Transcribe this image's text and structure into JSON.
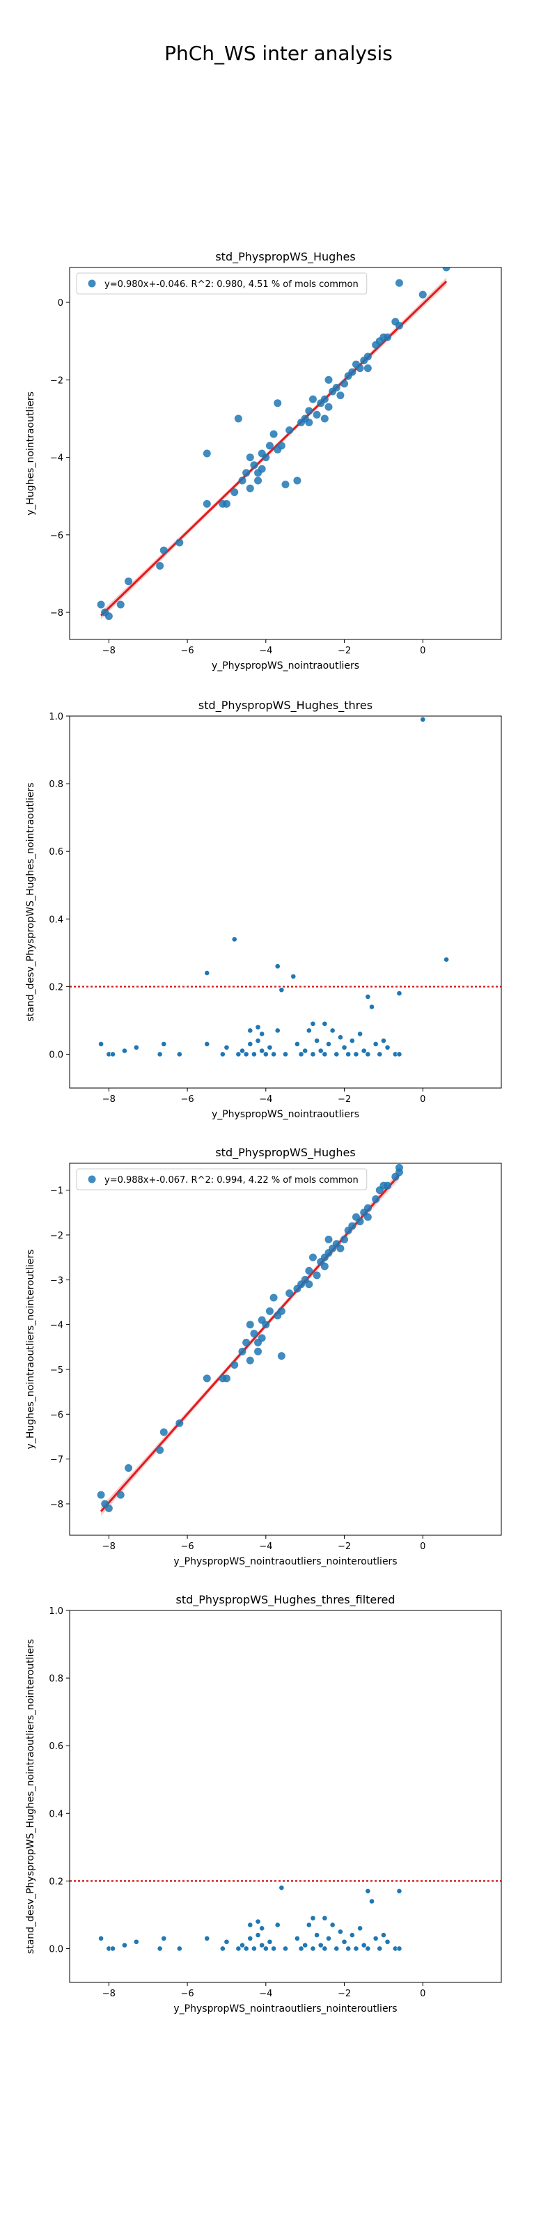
{
  "figure_title": "PhCh_WS inter analysis",
  "colors": {
    "point": "#1f77b4",
    "fit_line": "#e31a1c",
    "fit_band": "#f4a3a3",
    "threshold": "#d62728"
  },
  "chart_data": [
    {
      "type": "scatter",
      "title": "std_PhyspropWS_Hughes",
      "xlabel": "y_PhyspropWS_nointraoutliers",
      "ylabel": "y_Hughes_nointraoutliers",
      "xlim": [
        -9,
        2
      ],
      "ylim": [
        -8.7,
        0.9
      ],
      "xticks": [
        -8,
        -6,
        -4,
        -2,
        0
      ],
      "yticks": [
        -8,
        -6,
        -4,
        -2,
        0
      ],
      "legend": {
        "text": "y=0.980x+-0.046. R^2: 0.980, 4.51 % of mols common",
        "position": "top-left"
      },
      "grid": false,
      "fit": {
        "slope": 0.98,
        "intercept": -0.046,
        "x_range": [
          -8.2,
          0.6
        ],
        "band": true
      },
      "points": [
        [
          -8.2,
          -7.8
        ],
        [
          -8.1,
          -8.0
        ],
        [
          -8.0,
          -8.1
        ],
        [
          -7.7,
          -7.8
        ],
        [
          -7.5,
          -7.2
        ],
        [
          -6.7,
          -6.8
        ],
        [
          -6.6,
          -6.4
        ],
        [
          -6.2,
          -6.2
        ],
        [
          -5.5,
          -5.2
        ],
        [
          -5.5,
          -3.9
        ],
        [
          -5.1,
          -5.2
        ],
        [
          -5.0,
          -5.2
        ],
        [
          -4.8,
          -4.9
        ],
        [
          -4.7,
          -3.0
        ],
        [
          -4.6,
          -4.6
        ],
        [
          -4.5,
          -4.4
        ],
        [
          -4.4,
          -4.0
        ],
        [
          -4.4,
          -4.8
        ],
        [
          -4.3,
          -4.2
        ],
        [
          -4.2,
          -4.4
        ],
        [
          -4.2,
          -4.6
        ],
        [
          -4.1,
          -3.9
        ],
        [
          -4.1,
          -4.3
        ],
        [
          -4.0,
          -4.0
        ],
        [
          -3.9,
          -3.7
        ],
        [
          -3.8,
          -3.4
        ],
        [
          -3.7,
          -3.8
        ],
        [
          -3.7,
          -2.6
        ],
        [
          -3.6,
          -3.7
        ],
        [
          -3.5,
          -4.7
        ],
        [
          -3.4,
          -3.3
        ],
        [
          -3.2,
          -4.6
        ],
        [
          -3.1,
          -3.1
        ],
        [
          -3.0,
          -3.0
        ],
        [
          -2.9,
          -2.8
        ],
        [
          -2.9,
          -3.1
        ],
        [
          -2.8,
          -2.5
        ],
        [
          -2.7,
          -2.9
        ],
        [
          -2.6,
          -2.6
        ],
        [
          -2.5,
          -3.0
        ],
        [
          -2.5,
          -2.5
        ],
        [
          -2.4,
          -2.7
        ],
        [
          -2.4,
          -2.0
        ],
        [
          -2.3,
          -2.3
        ],
        [
          -2.2,
          -2.2
        ],
        [
          -2.1,
          -2.4
        ],
        [
          -2.0,
          -2.1
        ],
        [
          -1.9,
          -1.9
        ],
        [
          -1.8,
          -1.8
        ],
        [
          -1.7,
          -1.6
        ],
        [
          -1.6,
          -1.7
        ],
        [
          -1.5,
          -1.5
        ],
        [
          -1.4,
          -1.4
        ],
        [
          -1.4,
          -1.7
        ],
        [
          -1.2,
          -1.1
        ],
        [
          -1.1,
          -1.0
        ],
        [
          -1.0,
          -0.9
        ],
        [
          -0.9,
          -0.9
        ],
        [
          -0.7,
          -0.5
        ],
        [
          -0.6,
          -0.6
        ],
        [
          -0.6,
          0.5
        ],
        [
          0.0,
          0.2
        ],
        [
          0.6,
          0.9
        ]
      ]
    },
    {
      "type": "scatter",
      "title": "std_PhyspropWS_Hughes_thres",
      "xlabel": "y_PhyspropWS_nointraoutliers",
      "ylabel": "stand_desv_PhyspropWS_Hughes_nointraoutliers",
      "xlim": [
        -9,
        2
      ],
      "ylim": [
        -0.1,
        1.0
      ],
      "xticks": [
        -8,
        -6,
        -4,
        -2,
        0
      ],
      "yticks": [
        0.0,
        0.2,
        0.4,
        0.6,
        0.8,
        1.0
      ],
      "threshold": 0.2,
      "grid": false,
      "points": [
        [
          -8.2,
          0.03
        ],
        [
          -8.0,
          0.0
        ],
        [
          -7.9,
          0.0
        ],
        [
          -7.6,
          0.01
        ],
        [
          -7.3,
          0.02
        ],
        [
          -6.7,
          0.0
        ],
        [
          -6.6,
          0.03
        ],
        [
          -6.2,
          0.0
        ],
        [
          -5.5,
          0.24
        ],
        [
          -5.5,
          0.03
        ],
        [
          -5.1,
          0.0
        ],
        [
          -5.0,
          0.02
        ],
        [
          -4.8,
          0.34
        ],
        [
          -4.7,
          0.0
        ],
        [
          -4.6,
          0.01
        ],
        [
          -4.5,
          0.0
        ],
        [
          -4.4,
          0.07
        ],
        [
          -4.4,
          0.03
        ],
        [
          -4.3,
          0.0
        ],
        [
          -4.2,
          0.04
        ],
        [
          -4.2,
          0.08
        ],
        [
          -4.1,
          0.01
        ],
        [
          -4.1,
          0.06
        ],
        [
          -4.0,
          0.0
        ],
        [
          -3.9,
          0.02
        ],
        [
          -3.8,
          0.0
        ],
        [
          -3.7,
          0.26
        ],
        [
          -3.7,
          0.07
        ],
        [
          -3.6,
          0.19
        ],
        [
          -3.5,
          0.0
        ],
        [
          -3.3,
          0.23
        ],
        [
          -3.2,
          0.03
        ],
        [
          -3.1,
          0.0
        ],
        [
          -3.0,
          0.01
        ],
        [
          -2.9,
          0.07
        ],
        [
          -2.8,
          0.09
        ],
        [
          -2.8,
          0.0
        ],
        [
          -2.7,
          0.04
        ],
        [
          -2.6,
          0.01
        ],
        [
          -2.5,
          0.0
        ],
        [
          -2.5,
          0.09
        ],
        [
          -2.4,
          0.03
        ],
        [
          -2.3,
          0.07
        ],
        [
          -2.2,
          0.0
        ],
        [
          -2.1,
          0.05
        ],
        [
          -2.0,
          0.02
        ],
        [
          -1.9,
          0.0
        ],
        [
          -1.8,
          0.04
        ],
        [
          -1.7,
          0.0
        ],
        [
          -1.6,
          0.06
        ],
        [
          -1.5,
          0.01
        ],
        [
          -1.4,
          0.17
        ],
        [
          -1.4,
          0.0
        ],
        [
          -1.3,
          0.14
        ],
        [
          -1.2,
          0.03
        ],
        [
          -1.1,
          0.0
        ],
        [
          -1.0,
          0.04
        ],
        [
          -0.9,
          0.02
        ],
        [
          -0.7,
          0.0
        ],
        [
          -0.6,
          0.18
        ],
        [
          -0.6,
          0.0
        ],
        [
          0.0,
          0.99
        ],
        [
          0.6,
          0.28
        ]
      ]
    },
    {
      "type": "scatter",
      "title": "std_PhyspropWS_Hughes",
      "xlabel": "y_PhyspropWS_nointraoutliers_nointeroutliers",
      "ylabel": "y_Hughes_nointraoutliers_nointeroutliers",
      "xlim": [
        -9,
        2
      ],
      "ylim": [
        -8.7,
        -0.4
      ],
      "xticks": [
        -8,
        -6,
        -4,
        -2,
        0
      ],
      "yticks": [
        -8,
        -7,
        -6,
        -5,
        -4,
        -3,
        -2,
        -1
      ],
      "legend": {
        "text": "y=0.988x+-0.067. R^2: 0.994, 4.22 % of mols common",
        "position": "top-left"
      },
      "grid": false,
      "fit": {
        "slope": 0.988,
        "intercept": -0.067,
        "x_range": [
          -8.2,
          -0.6
        ],
        "band": true
      },
      "points": [
        [
          -8.2,
          -7.8
        ],
        [
          -8.1,
          -8.0
        ],
        [
          -8.0,
          -8.1
        ],
        [
          -7.7,
          -7.8
        ],
        [
          -7.5,
          -7.2
        ],
        [
          -6.7,
          -6.8
        ],
        [
          -6.6,
          -6.4
        ],
        [
          -6.2,
          -6.2
        ],
        [
          -5.5,
          -5.2
        ],
        [
          -5.1,
          -5.2
        ],
        [
          -5.0,
          -5.2
        ],
        [
          -4.8,
          -4.9
        ],
        [
          -4.6,
          -4.6
        ],
        [
          -4.5,
          -4.4
        ],
        [
          -4.4,
          -4.0
        ],
        [
          -4.4,
          -4.8
        ],
        [
          -4.3,
          -4.2
        ],
        [
          -4.2,
          -4.4
        ],
        [
          -4.2,
          -4.6
        ],
        [
          -4.1,
          -3.9
        ],
        [
          -4.1,
          -4.3
        ],
        [
          -4.0,
          -4.0
        ],
        [
          -3.9,
          -3.7
        ],
        [
          -3.8,
          -3.4
        ],
        [
          -3.7,
          -3.8
        ],
        [
          -3.6,
          -3.7
        ],
        [
          -3.6,
          -4.7
        ],
        [
          -3.4,
          -3.3
        ],
        [
          -3.2,
          -3.2
        ],
        [
          -3.1,
          -3.1
        ],
        [
          -3.0,
          -3.0
        ],
        [
          -2.9,
          -2.8
        ],
        [
          -2.9,
          -3.1
        ],
        [
          -2.8,
          -2.5
        ],
        [
          -2.7,
          -2.9
        ],
        [
          -2.6,
          -2.6
        ],
        [
          -2.5,
          -2.7
        ],
        [
          -2.5,
          -2.5
        ],
        [
          -2.4,
          -2.4
        ],
        [
          -2.4,
          -2.1
        ],
        [
          -2.3,
          -2.3
        ],
        [
          -2.2,
          -2.2
        ],
        [
          -2.1,
          -2.3
        ],
        [
          -2.0,
          -2.1
        ],
        [
          -1.9,
          -1.9
        ],
        [
          -1.8,
          -1.8
        ],
        [
          -1.7,
          -1.6
        ],
        [
          -1.6,
          -1.7
        ],
        [
          -1.5,
          -1.5
        ],
        [
          -1.4,
          -1.4
        ],
        [
          -1.4,
          -1.6
        ],
        [
          -1.2,
          -1.2
        ],
        [
          -1.1,
          -1.0
        ],
        [
          -1.0,
          -0.9
        ],
        [
          -0.9,
          -0.9
        ],
        [
          -0.7,
          -0.7
        ],
        [
          -0.6,
          -0.5
        ],
        [
          -0.6,
          -0.6
        ]
      ]
    },
    {
      "type": "scatter",
      "title": "std_PhyspropWS_Hughes_thres_filtered",
      "xlabel": "y_PhyspropWS_nointraoutliers_nointeroutliers",
      "ylabel": "stand_desv_PhyspropWS_Hughes_nointraoutliers_nointeroutliers",
      "xlim": [
        -9,
        2
      ],
      "ylim": [
        -0.1,
        1.0
      ],
      "xticks": [
        -8,
        -6,
        -4,
        -2,
        0
      ],
      "yticks": [
        0.0,
        0.2,
        0.4,
        0.6,
        0.8,
        1.0
      ],
      "threshold": 0.2,
      "grid": false,
      "points": [
        [
          -8.2,
          0.03
        ],
        [
          -8.0,
          0.0
        ],
        [
          -7.9,
          0.0
        ],
        [
          -7.6,
          0.01
        ],
        [
          -7.3,
          0.02
        ],
        [
          -6.7,
          0.0
        ],
        [
          -6.6,
          0.03
        ],
        [
          -6.2,
          0.0
        ],
        [
          -5.5,
          0.03
        ],
        [
          -5.1,
          0.0
        ],
        [
          -5.0,
          0.02
        ],
        [
          -4.7,
          0.0
        ],
        [
          -4.6,
          0.01
        ],
        [
          -4.5,
          0.0
        ],
        [
          -4.4,
          0.07
        ],
        [
          -4.4,
          0.03
        ],
        [
          -4.3,
          0.0
        ],
        [
          -4.2,
          0.04
        ],
        [
          -4.2,
          0.08
        ],
        [
          -4.1,
          0.01
        ],
        [
          -4.1,
          0.06
        ],
        [
          -4.0,
          0.0
        ],
        [
          -3.9,
          0.02
        ],
        [
          -3.8,
          0.0
        ],
        [
          -3.7,
          0.07
        ],
        [
          -3.6,
          0.18
        ],
        [
          -3.5,
          0.0
        ],
        [
          -3.2,
          0.03
        ],
        [
          -3.1,
          0.0
        ],
        [
          -3.0,
          0.01
        ],
        [
          -2.9,
          0.07
        ],
        [
          -2.8,
          0.09
        ],
        [
          -2.8,
          0.0
        ],
        [
          -2.7,
          0.04
        ],
        [
          -2.6,
          0.01
        ],
        [
          -2.5,
          0.0
        ],
        [
          -2.5,
          0.09
        ],
        [
          -2.4,
          0.03
        ],
        [
          -2.3,
          0.07
        ],
        [
          -2.2,
          0.0
        ],
        [
          -2.1,
          0.05
        ],
        [
          -2.0,
          0.02
        ],
        [
          -1.9,
          0.0
        ],
        [
          -1.8,
          0.04
        ],
        [
          -1.7,
          0.0
        ],
        [
          -1.6,
          0.06
        ],
        [
          -1.5,
          0.01
        ],
        [
          -1.4,
          0.17
        ],
        [
          -1.4,
          0.0
        ],
        [
          -1.3,
          0.14
        ],
        [
          -1.2,
          0.03
        ],
        [
          -1.1,
          0.0
        ],
        [
          -1.0,
          0.04
        ],
        [
          -0.9,
          0.02
        ],
        [
          -0.7,
          0.0
        ],
        [
          -0.6,
          0.17
        ],
        [
          -0.6,
          0.0
        ]
      ]
    }
  ]
}
